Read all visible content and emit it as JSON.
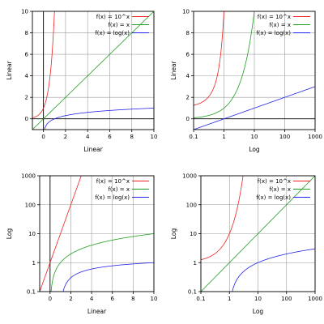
{
  "colors": {
    "red": "#ee2020",
    "green": "#1e9e1e",
    "blue": "#2222ee",
    "grid": "#9a9a9a",
    "axis": "#000000"
  },
  "chart_data": [
    {
      "type": "line",
      "x_scale": "linear",
      "y_scale": "linear",
      "xlim": [
        -1,
        10
      ],
      "ylim": [
        -1,
        10
      ],
      "xticks": [
        0,
        2,
        4,
        6,
        8,
        10
      ],
      "xtick_labels": [
        "0",
        "2",
        "4",
        "6",
        "8",
        "10"
      ],
      "yticks": [
        0,
        2,
        4,
        6,
        8,
        10
      ],
      "ytick_labels": [
        "0",
        "2",
        "4",
        "6",
        "8",
        "10"
      ],
      "xlabel": "Linear",
      "ylabel": "Linear",
      "grid": true,
      "legend_position": "top-right",
      "series": [
        {
          "name": "f(x) = 10^x",
          "function": "pow10",
          "color": "#ee2020"
        },
        {
          "name": "f(x) = x",
          "function": "identity",
          "color": "#1e9e1e"
        },
        {
          "name": "f(x) = log(x)",
          "function": "log10",
          "color": "#2222ee"
        }
      ]
    },
    {
      "type": "line",
      "x_scale": "log",
      "y_scale": "linear",
      "xlim": [
        0.1,
        1000
      ],
      "ylim": [
        -1,
        10
      ],
      "xticks": [
        0.1,
        1,
        10,
        100,
        1000
      ],
      "xtick_labels": [
        "0.1",
        "1",
        "10",
        "100",
        "1000"
      ],
      "yticks": [
        0,
        2,
        4,
        6,
        8,
        10
      ],
      "ytick_labels": [
        "0",
        "2",
        "4",
        "6",
        "8",
        "10"
      ],
      "xlabel": "Log",
      "ylabel": "Linear",
      "grid": true,
      "legend_position": "top-right",
      "series": [
        {
          "name": "f(x) = 10^x",
          "function": "pow10",
          "color": "#ee2020"
        },
        {
          "name": "f(x) = x",
          "function": "identity",
          "color": "#1e9e1e"
        },
        {
          "name": "f(x) = log(x)",
          "function": "log10",
          "color": "#2222ee"
        }
      ]
    },
    {
      "type": "line",
      "x_scale": "linear",
      "y_scale": "log",
      "xlim": [
        -1,
        10
      ],
      "ylim": [
        0.1,
        1000
      ],
      "xticks": [
        0,
        2,
        4,
        6,
        8,
        10
      ],
      "xtick_labels": [
        "0",
        "2",
        "4",
        "6",
        "8",
        "10"
      ],
      "yticks": [
        0.1,
        1,
        10,
        100,
        1000
      ],
      "ytick_labels": [
        "0.1",
        "1",
        "10",
        "100",
        "1000"
      ],
      "xlabel": "Linear",
      "ylabel": "Log",
      "grid": true,
      "legend_position": "top-right",
      "series": [
        {
          "name": "f(x) = 10^x",
          "function": "pow10",
          "color": "#ee2020"
        },
        {
          "name": "f(x) = x",
          "function": "identity",
          "color": "#1e9e1e"
        },
        {
          "name": "f(x) = log(x)",
          "function": "log10",
          "color": "#2222ee"
        }
      ]
    },
    {
      "type": "line",
      "x_scale": "log",
      "y_scale": "log",
      "xlim": [
        0.1,
        1000
      ],
      "ylim": [
        0.1,
        1000
      ],
      "xticks": [
        0.1,
        1,
        10,
        100,
        1000
      ],
      "xtick_labels": [
        "0.1",
        "1",
        "10",
        "100",
        "1000"
      ],
      "yticks": [
        0.1,
        1,
        10,
        100,
        1000
      ],
      "ytick_labels": [
        "0.1",
        "1",
        "10",
        "100",
        "1000"
      ],
      "xlabel": "Log",
      "ylabel": "Log",
      "grid": true,
      "legend_position": "top-right",
      "series": [
        {
          "name": "f(x) = 10^x",
          "function": "pow10",
          "color": "#ee2020"
        },
        {
          "name": "f(x) = x",
          "function": "identity",
          "color": "#1e9e1e"
        },
        {
          "name": "f(x) = log(x)",
          "function": "log10",
          "color": "#2222ee"
        }
      ]
    }
  ]
}
